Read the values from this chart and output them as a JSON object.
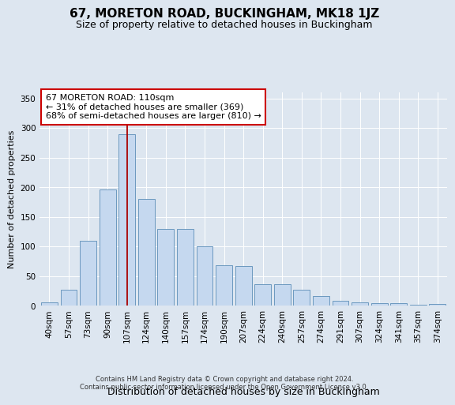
{
  "title": "67, MORETON ROAD, BUCKINGHAM, MK18 1JZ",
  "subtitle": "Size of property relative to detached houses in Buckingham",
  "xlabel": "Distribution of detached houses by size in Buckingham",
  "ylabel": "Number of detached properties",
  "footer_line1": "Contains HM Land Registry data © Crown copyright and database right 2024.",
  "footer_line2": "Contains public sector information licensed under the Open Government Licence v3.0.",
  "categories": [
    "40sqm",
    "57sqm",
    "73sqm",
    "90sqm",
    "107sqm",
    "124sqm",
    "140sqm",
    "157sqm",
    "174sqm",
    "190sqm",
    "207sqm",
    "224sqm",
    "240sqm",
    "257sqm",
    "274sqm",
    "291sqm",
    "307sqm",
    "324sqm",
    "341sqm",
    "357sqm",
    "374sqm"
  ],
  "values": [
    6,
    27,
    110,
    197,
    290,
    180,
    130,
    130,
    100,
    68,
    67,
    36,
    36,
    27,
    17,
    8,
    6,
    4,
    4,
    2,
    3
  ],
  "bar_color": "#c5d8ef",
  "bar_edge_color": "#5b8db8",
  "highlight_index": 4,
  "highlight_line_color": "#aa0000",
  "annotation_text": "67 MORETON ROAD: 110sqm\n← 31% of detached houses are smaller (369)\n68% of semi-detached houses are larger (810) →",
  "annotation_box_color": "#ffffff",
  "annotation_box_edge_color": "#cc0000",
  "ylim": [
    0,
    360
  ],
  "yticks": [
    0,
    50,
    100,
    150,
    200,
    250,
    300,
    350
  ],
  "bg_color": "#dde6f0",
  "plot_bg_color": "#dde6f0",
  "grid_color": "#ffffff",
  "title_fontsize": 11,
  "subtitle_fontsize": 9,
  "xlabel_fontsize": 9,
  "ylabel_fontsize": 8,
  "tick_fontsize": 7.5,
  "annotation_fontsize": 8,
  "footer_fontsize": 6
}
